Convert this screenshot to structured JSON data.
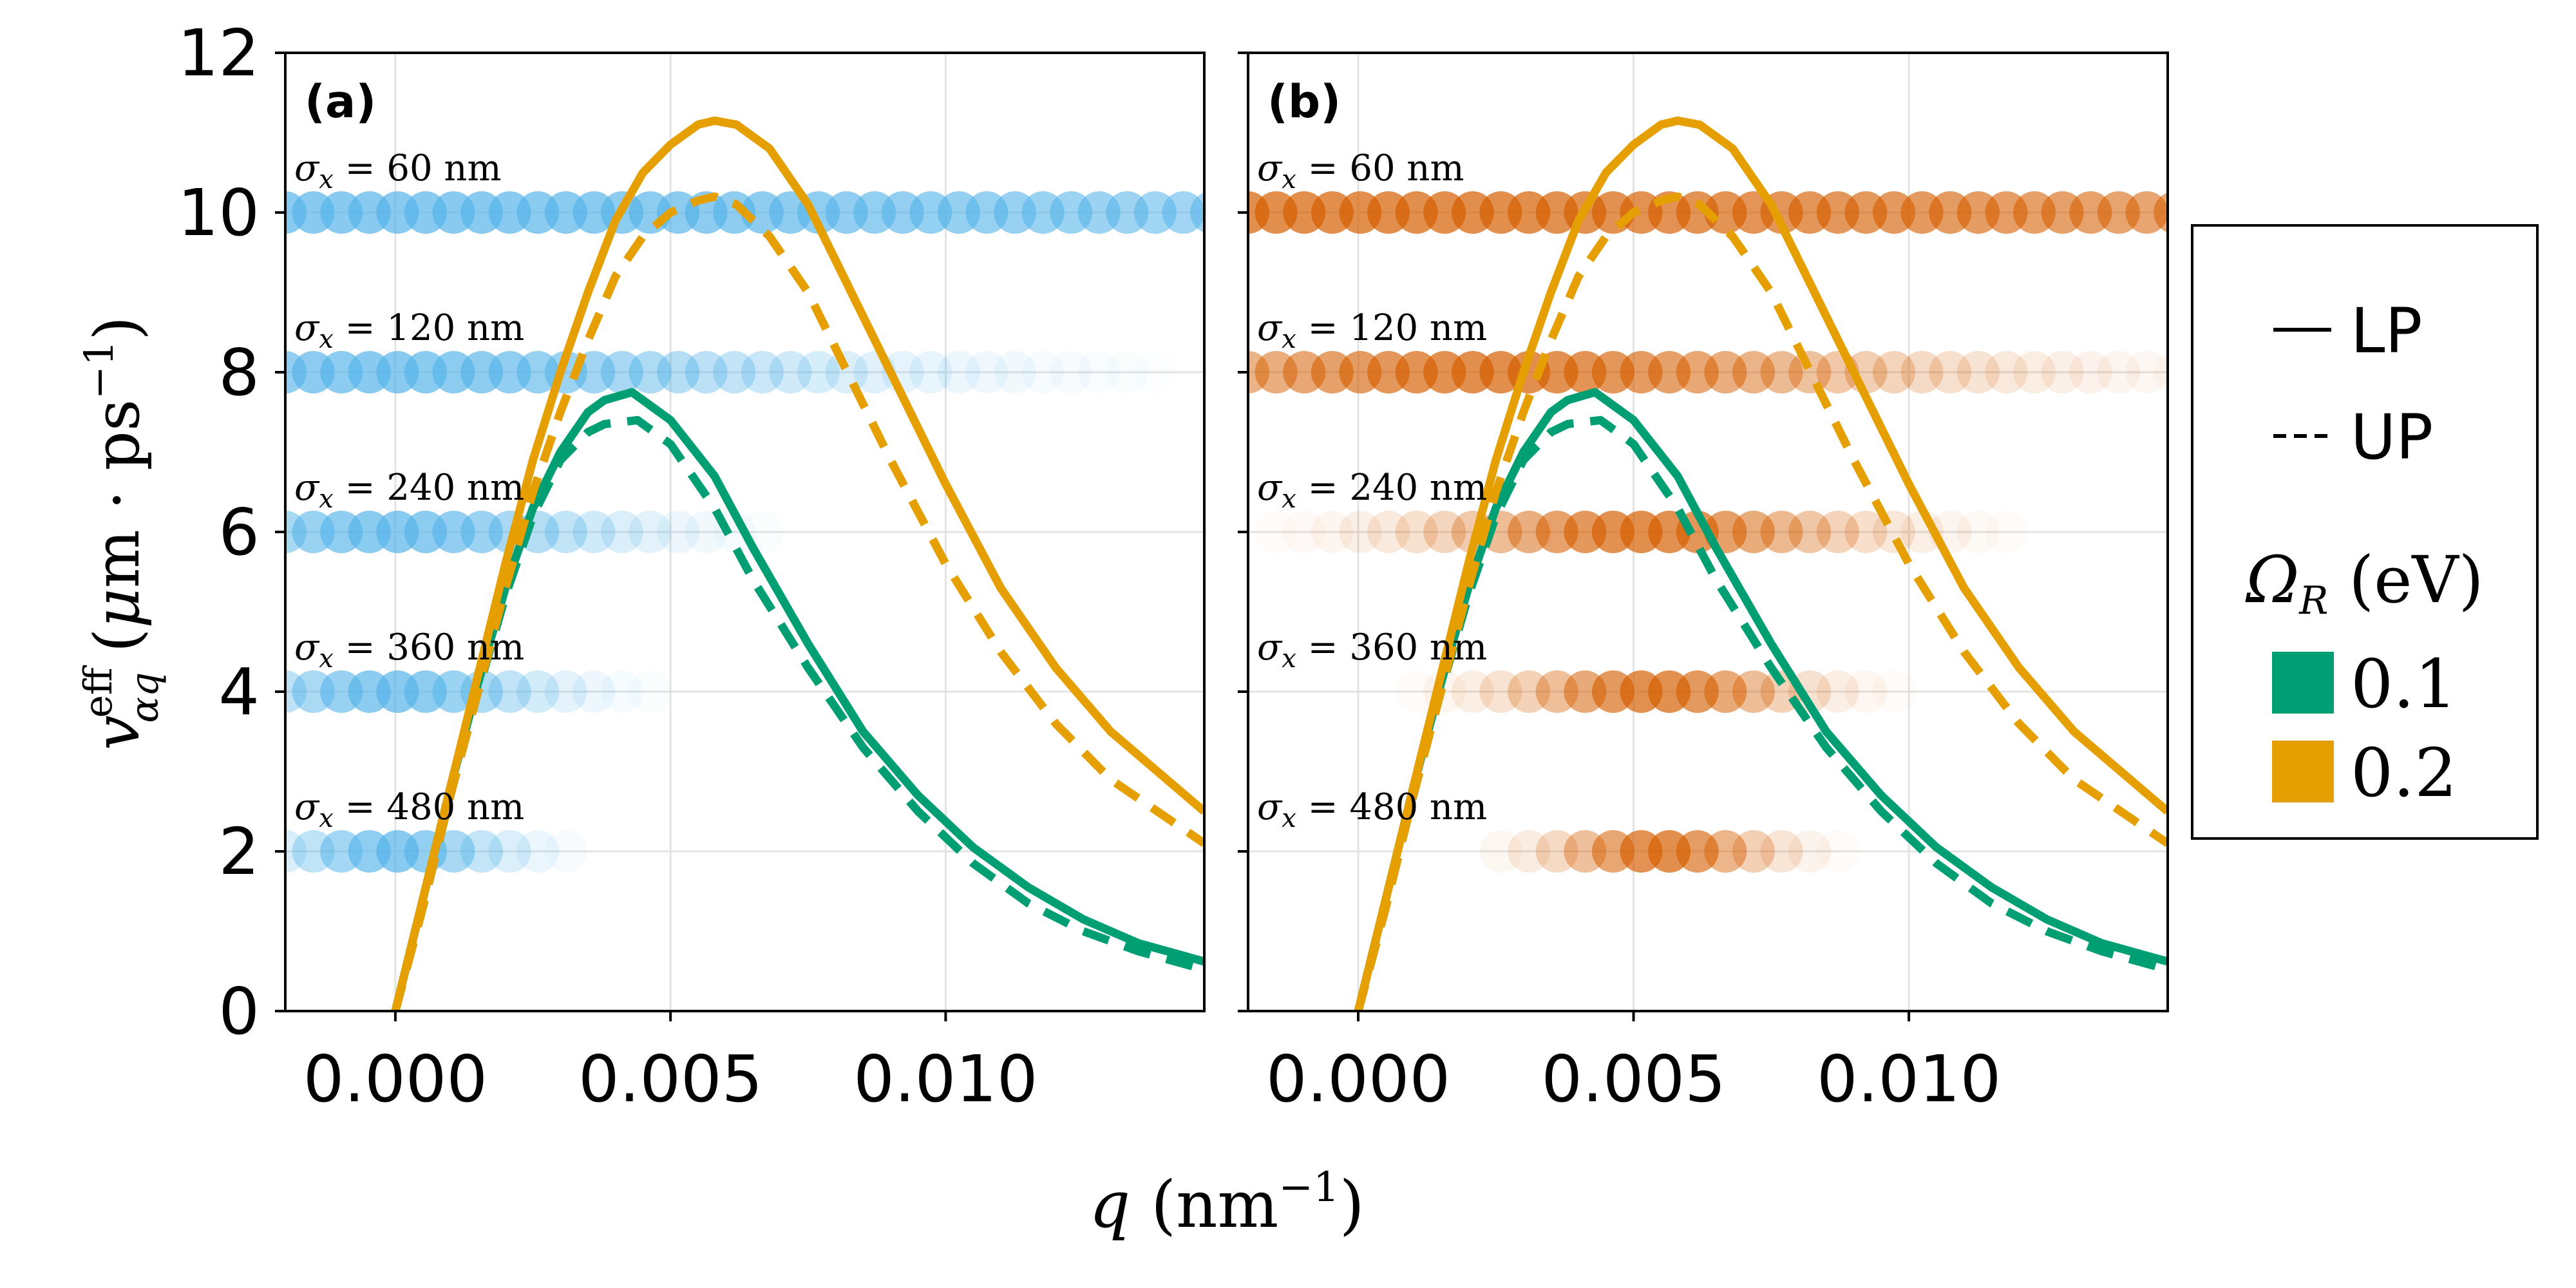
{
  "chart_data": {
    "type": "line",
    "ylabel": "v^eff_αq (μm · ps⁻¹)",
    "xlabel": "q (nm⁻¹)",
    "xlim": [
      -0.002,
      0.0147
    ],
    "ylim": [
      0,
      12
    ],
    "x_ticks": [
      "0.000",
      "0.005",
      "0.010"
    ],
    "x_tick_values": [
      0,
      0.005,
      0.01
    ],
    "y_ticks": [
      "0",
      "2",
      "4",
      "6",
      "8",
      "10",
      "12"
    ],
    "y_tick_values": [
      0,
      2,
      4,
      6,
      8,
      10,
      12
    ],
    "grid": true,
    "legend": {
      "placement": "right",
      "line_entries": [
        {
          "label": "LP",
          "style": "solid"
        },
        {
          "label": "UP",
          "style": "dashed"
        }
      ],
      "group_title": "Ω_R (eV)",
      "color_entries": [
        {
          "label": "0.1",
          "color": "#009E73"
        },
        {
          "label": "0.2",
          "color": "#E69F00"
        }
      ]
    },
    "series": [
      {
        "omega": "0.1",
        "branch": "LP",
        "color": "#009E73",
        "style": "solid",
        "x": [
          0,
          0.0005,
          0.001,
          0.0015,
          0.002,
          0.0025,
          0.003,
          0.0035,
          0.0038,
          0.0043,
          0.005,
          0.0058,
          0.0065,
          0.0075,
          0.0085,
          0.0095,
          0.0105,
          0.0115,
          0.0125,
          0.0135,
          0.0147
        ],
        "y": [
          0,
          1.4,
          2.8,
          4.1,
          5.3,
          6.3,
          7.0,
          7.5,
          7.65,
          7.75,
          7.4,
          6.7,
          5.8,
          4.6,
          3.5,
          2.7,
          2.05,
          1.55,
          1.15,
          0.85,
          0.62
        ]
      },
      {
        "omega": "0.1",
        "branch": "UP",
        "color": "#009E73",
        "style": "dashed",
        "x": [
          0,
          0.0005,
          0.001,
          0.0015,
          0.002,
          0.0025,
          0.003,
          0.0035,
          0.0038,
          0.0044,
          0.005,
          0.0058,
          0.0065,
          0.0075,
          0.0085,
          0.0095,
          0.0105,
          0.0115,
          0.0125,
          0.0135,
          0.0147
        ],
        "y": [
          0,
          1.3,
          2.7,
          4.0,
          5.2,
          6.2,
          6.9,
          7.25,
          7.35,
          7.4,
          7.1,
          6.3,
          5.4,
          4.3,
          3.3,
          2.5,
          1.85,
          1.35,
          1.0,
          0.75,
          0.52
        ]
      },
      {
        "omega": "0.2",
        "branch": "LP",
        "color": "#E69F00",
        "style": "solid",
        "x": [
          0,
          0.0005,
          0.001,
          0.0015,
          0.002,
          0.0025,
          0.003,
          0.0035,
          0.004,
          0.0045,
          0.005,
          0.0055,
          0.0058,
          0.0062,
          0.0068,
          0.0075,
          0.008,
          0.009,
          0.01,
          0.011,
          0.012,
          0.013,
          0.0147
        ],
        "y": [
          0,
          1.4,
          2.8,
          4.2,
          5.6,
          6.9,
          8.0,
          9.0,
          9.9,
          10.5,
          10.85,
          11.1,
          11.15,
          11.1,
          10.8,
          10.1,
          9.4,
          8.0,
          6.6,
          5.3,
          4.3,
          3.5,
          2.5
        ]
      },
      {
        "omega": "0.2",
        "branch": "UP",
        "color": "#E69F00",
        "style": "dashed",
        "x": [
          0,
          0.0005,
          0.001,
          0.0015,
          0.002,
          0.0025,
          0.003,
          0.0035,
          0.004,
          0.0045,
          0.005,
          0.0055,
          0.0058,
          0.0062,
          0.0068,
          0.0075,
          0.008,
          0.009,
          0.01,
          0.011,
          0.012,
          0.013,
          0.0147
        ],
        "y": [
          0,
          1.3,
          2.7,
          4.0,
          5.3,
          6.5,
          7.5,
          8.4,
          9.2,
          9.7,
          10.0,
          10.15,
          10.2,
          10.1,
          9.7,
          9.0,
          8.3,
          6.9,
          5.6,
          4.5,
          3.6,
          2.9,
          2.1
        ]
      }
    ],
    "wavepackets": [
      {
        "sigma_label": "σ_x = 60 nm",
        "y": 10,
        "a_center": 0.0,
        "a_spread": 0.03,
        "b_center": 0.0,
        "b_spread": 0.03
      },
      {
        "sigma_label": "σ_x = 120 nm",
        "y": 8,
        "a_center": 0.0,
        "a_spread": 0.0075,
        "b_center": 0.0026,
        "b_spread": 0.0072
      },
      {
        "sigma_label": "σ_x = 240 nm",
        "y": 6,
        "a_center": 0.0,
        "a_spread": 0.0038,
        "b_center": 0.0052,
        "b_spread": 0.0036
      },
      {
        "sigma_label": "σ_x = 360 nm",
        "y": 4,
        "a_center": 0.0,
        "a_spread": 0.0026,
        "b_center": 0.0054,
        "b_spread": 0.0024
      },
      {
        "sigma_label": "σ_x = 480 nm",
        "y": 2,
        "a_center": 0.0,
        "a_spread": 0.0019,
        "b_center": 0.0055,
        "b_spread": 0.0018
      }
    ],
    "panels": [
      {
        "label": "(a)",
        "marker_color": "#56B4E9"
      },
      {
        "label": "(b)",
        "marker_color": "#D55E00"
      }
    ]
  }
}
